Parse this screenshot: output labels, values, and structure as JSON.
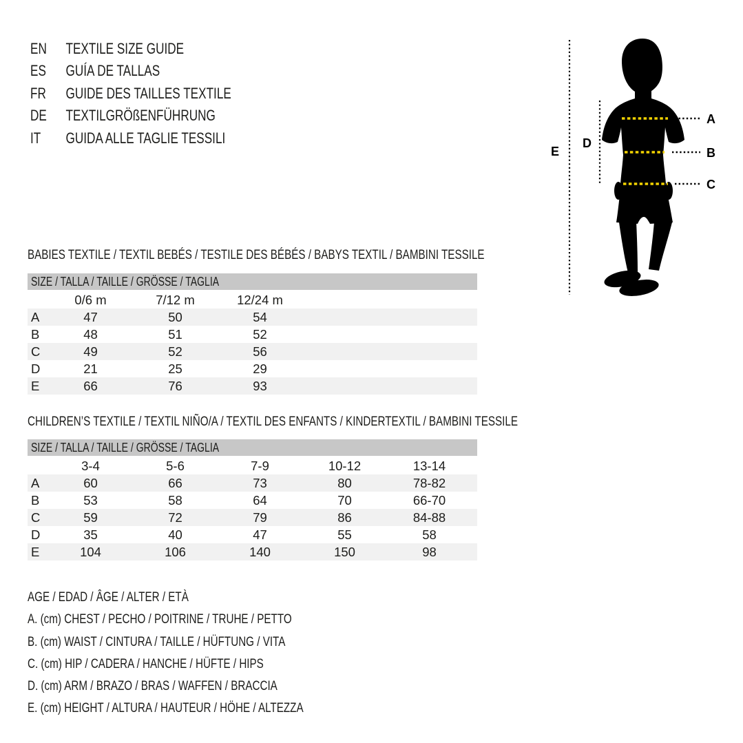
{
  "colors": {
    "ink": "#1d1d1b",
    "black": "#000000",
    "yellow": "#f2d200",
    "bar": "#c7c7c7",
    "zebra": "#f1f1f1"
  },
  "languages": {
    "items": [
      {
        "code": "EN",
        "label": "TEXTILE SIZE GUIDE"
      },
      {
        "code": "ES",
        "label": "GUÍA DE TALLAS"
      },
      {
        "code": "FR",
        "label": "GUIDE DES TAILLES TEXTILE"
      },
      {
        "code": "DE",
        "label": "TEXTILGRÖßENFÜHRUNG"
      },
      {
        "code": "IT",
        "label": "GUIDA ALLE TAGLIE TESSILI"
      }
    ]
  },
  "figure": {
    "labels": {
      "a": "A",
      "b": "B",
      "c": "C",
      "d": "D",
      "e": "E"
    }
  },
  "babies_table": {
    "title": "BABIES TEXTILE / TEXTIL BEBÉS / TESTILE DES BÉBÉS / BABYS TEXTIL / BAMBINI TESSILE",
    "size_header": "SIZE / TALLA / TAILLE / GRÖSSE / TAGLIA",
    "columns": [
      "0/6 m",
      "7/12 m",
      "12/24 m"
    ],
    "rows": [
      {
        "label": "A",
        "values": [
          "47",
          "50",
          "54"
        ]
      },
      {
        "label": "B",
        "values": [
          "48",
          "51",
          "52"
        ]
      },
      {
        "label": "C",
        "values": [
          "49",
          "52",
          "56"
        ]
      },
      {
        "label": "D",
        "values": [
          "21",
          "25",
          "29"
        ]
      },
      {
        "label": "E",
        "values": [
          "66",
          "76",
          "93"
        ]
      }
    ]
  },
  "children_table": {
    "title": "CHILDREN’S TEXTILE / TEXTIL NIÑO/A / TEXTIL DES ENFANTS / KINDERTEXTIL / BAMBINI TESSILE",
    "size_header": "SIZE / TALLA / TAILLE / GRÖSSE / TAGLIA",
    "columns": [
      "3-4",
      "5-6",
      "7-9",
      "10-12",
      "13-14"
    ],
    "rows": [
      {
        "label": "A",
        "values": [
          "60",
          "66",
          "73",
          "80",
          "78-82"
        ]
      },
      {
        "label": "B",
        "values": [
          "53",
          "58",
          "64",
          "70",
          "66-70"
        ]
      },
      {
        "label": "C",
        "values": [
          "59",
          "72",
          "79",
          "86",
          "84-88"
        ]
      },
      {
        "label": "D",
        "values": [
          "35",
          "40",
          "47",
          "55",
          "58"
        ]
      },
      {
        "label": "E",
        "values": [
          "104",
          "106",
          "140",
          "150",
          "98"
        ]
      }
    ]
  },
  "legend": {
    "lines": [
      "AGE / EDAD / ÂGE / ALTER / ETÀ",
      "A. (cm) CHEST / PECHO / POITRINE / TRUHE / PETTO",
      "B. (cm) WAIST / CINTURA / TAILLE / HÜFTUNG / VITA",
      "C. (cm) HIP / CADERA / HANCHE / HÜFTE / HIPS",
      "D. (cm) ARM / BRAZO / BRAS / WAFFEN / BRACCIA",
      "E. (cm) HEIGHT / ALTURA / HAUTEUR / HÖHE / ALTEZZA"
    ]
  }
}
